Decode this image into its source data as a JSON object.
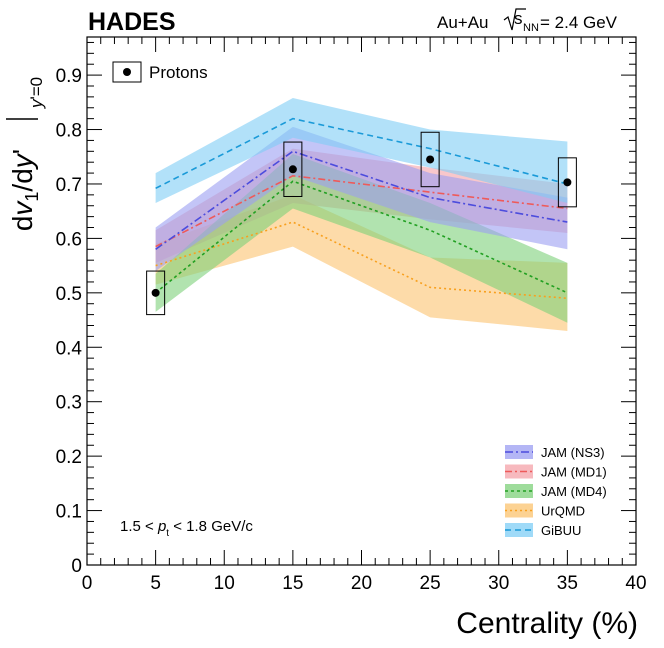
{
  "header": {
    "experiment": "HADES",
    "system": "Au+Au",
    "energy_suffix": " = 2.4 GeV"
  },
  "chart_data": {
    "type": "line",
    "xlabel": "Centrality (%)",
    "ylabel": "dv1/dy'|y'=0",
    "xlim": [
      0,
      40
    ],
    "ylim": [
      0,
      0.97
    ],
    "x_ticks": [
      0,
      5,
      10,
      15,
      20,
      25,
      30,
      35,
      40
    ],
    "y_ticks": [
      0,
      0.1,
      0.2,
      0.3,
      0.4,
      0.5,
      0.6,
      0.7,
      0.8,
      0.9
    ],
    "x_tick_labels": [
      "0",
      "5",
      "10",
      "15",
      "20",
      "25",
      "30",
      "35",
      "40"
    ],
    "y_tick_labels": [
      "0",
      "0.1",
      "0.2",
      "0.3",
      "0.4",
      "0.5",
      "0.6",
      "0.7",
      "0.8",
      "0.9"
    ],
    "annotation": "1.5 < pt < 1.8 GeV/c",
    "data_points": {
      "name": "Protons",
      "x": [
        5,
        15,
        25,
        35
      ],
      "y": [
        0.5,
        0.727,
        0.745,
        0.703
      ],
      "sys_error": [
        0.04,
        0.05,
        0.05,
        0.045
      ],
      "color": "#000000"
    },
    "series": [
      {
        "name": "UrQMD",
        "x": [
          5,
          15,
          25,
          35
        ],
        "y": [
          0.55,
          0.63,
          0.51,
          0.49
        ],
        "band_low": [
          0.515,
          0.585,
          0.455,
          0.43
        ],
        "band_high": [
          0.59,
          0.68,
          0.565,
          0.555
        ],
        "color": "#f8a01e",
        "band_color": "#fbc36f",
        "dash": "2,3"
      },
      {
        "name": "JAM (MD1)",
        "x": [
          5,
          15,
          25,
          35
        ],
        "y": [
          0.585,
          0.715,
          0.685,
          0.655
        ],
        "band_low": [
          0.555,
          0.665,
          0.635,
          0.61
        ],
        "band_high": [
          0.615,
          0.765,
          0.73,
          0.7
        ],
        "color": "#ee5a5a",
        "band_color": "#f4a1a8",
        "dash": "7,3,2,3"
      },
      {
        "name": "JAM (MD4)",
        "x": [
          5,
          15,
          25,
          35
        ],
        "y": [
          0.5,
          0.705,
          0.615,
          0.5
        ],
        "band_low": [
          0.465,
          0.655,
          0.565,
          0.445
        ],
        "band_high": [
          0.535,
          0.755,
          0.665,
          0.555
        ],
        "color": "#22a022",
        "band_color": "#7dd07a",
        "dash": "3,3"
      },
      {
        "name": "JAM (NS3)",
        "x": [
          5,
          15,
          25,
          35
        ],
        "y": [
          0.58,
          0.76,
          0.675,
          0.63
        ],
        "band_low": [
          0.54,
          0.715,
          0.63,
          0.58
        ],
        "band_high": [
          0.62,
          0.805,
          0.72,
          0.675
        ],
        "color": "#4c4cdd",
        "band_color": "#9b9ef2",
        "dash": "8,3,2,3"
      },
      {
        "name": "GiBUU",
        "x": [
          5,
          15,
          25,
          35
        ],
        "y": [
          0.692,
          0.82,
          0.765,
          0.7
        ],
        "band_low": [
          0.665,
          0.785,
          0.73,
          0.665
        ],
        "band_high": [
          0.72,
          0.858,
          0.8,
          0.778
        ],
        "color": "#1a9ad8",
        "band_color": "#7fcdf5",
        "dash": "6,4"
      }
    ],
    "legend": {
      "placement": "bottom-right",
      "order": [
        "JAM (NS3)",
        "JAM (MD1)",
        "JAM (MD4)",
        "UrQMD",
        "GiBUU"
      ]
    },
    "colors": {
      "frame": "#000000",
      "background": "#ffffff"
    }
  }
}
